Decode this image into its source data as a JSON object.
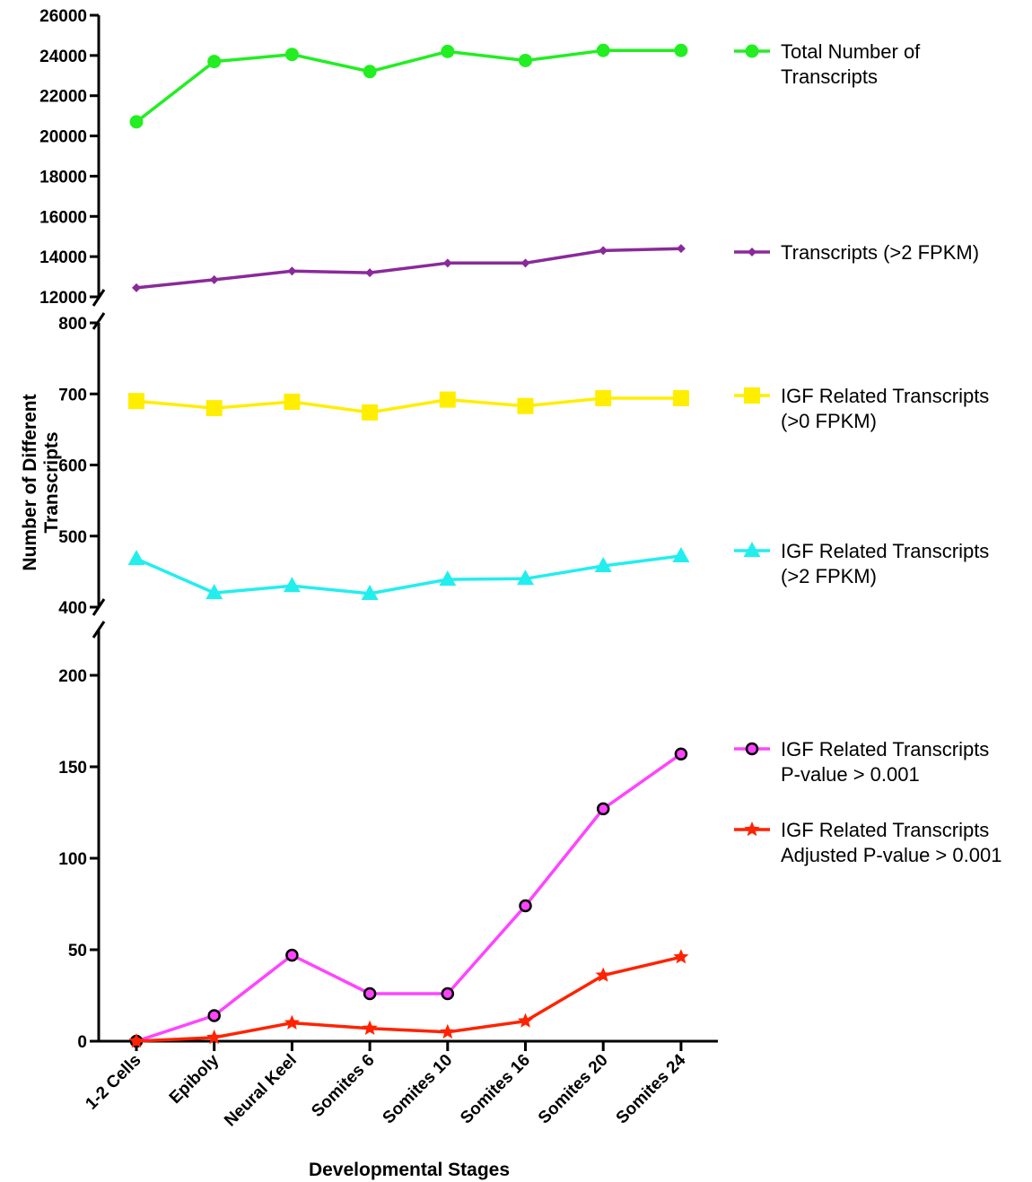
{
  "chart_data": {
    "type": "line",
    "xlabel": "Developmental Stages",
    "ylabel": [
      "Number of Different",
      "Transcripts"
    ],
    "categories": [
      "1-2 Cells",
      "Epiboly",
      "Neural Keel",
      "Somites 6",
      "Somites 10",
      "Somites 16",
      "Somites 20",
      "Somites 24"
    ],
    "y_axis_segments": [
      {
        "range": [
          12000,
          26000
        ],
        "ticks": [
          "26000",
          "24000",
          "22000",
          "20000",
          "18000",
          "16000",
          "14000",
          "12000"
        ]
      },
      {
        "range": [
          400,
          800
        ],
        "ticks": [
          "800",
          "700",
          "600",
          "500",
          "400"
        ]
      },
      {
        "range": [
          0,
          225
        ],
        "ticks": [
          "200",
          "150",
          "100",
          "50",
          "0"
        ]
      }
    ],
    "axis_break": true,
    "grid": false,
    "legend_position": "right",
    "series": [
      {
        "name": [
          "Total Number of",
          "Transcripts"
        ],
        "segment": 0,
        "marker": "circle",
        "color": "#22ee22",
        "values": [
          20700,
          23700,
          24050,
          23200,
          24200,
          23750,
          24250,
          24250
        ]
      },
      {
        "name": [
          "Transcripts (>2 FPKM)"
        ],
        "segment": 0,
        "marker": "diamond",
        "color": "#8a2a9a",
        "values": [
          12450,
          12850,
          13280,
          13200,
          13680,
          13680,
          14300,
          14400
        ]
      },
      {
        "name": [
          "IGF Related Transcripts",
          "(>0 FPKM)"
        ],
        "segment": 1,
        "marker": "square",
        "color": "#ffee00",
        "values": [
          690,
          680,
          689,
          674,
          692,
          683,
          694,
          694
        ]
      },
      {
        "name": [
          "IGF Related Transcripts",
          "(>2 FPKM)"
        ],
        "segment": 1,
        "marker": "triangle",
        "color": "#22eeee",
        "values": [
          468,
          420,
          430,
          419,
          439,
          440,
          458,
          472
        ]
      },
      {
        "name": [
          " IGF Related Transcripts",
          "  P-value > 0.001"
        ],
        "segment": 2,
        "marker": "open-circle",
        "color": "#ff44ff",
        "values": [
          0,
          14,
          47,
          26,
          26,
          74,
          127,
          157
        ]
      },
      {
        "name": [
          "IGF Related Transcripts",
          "Adjusted P-value > 0.001"
        ],
        "segment": 2,
        "marker": "star",
        "color": "#ff2200",
        "values": [
          0,
          2,
          10,
          7,
          5,
          11,
          36,
          46
        ]
      }
    ]
  }
}
